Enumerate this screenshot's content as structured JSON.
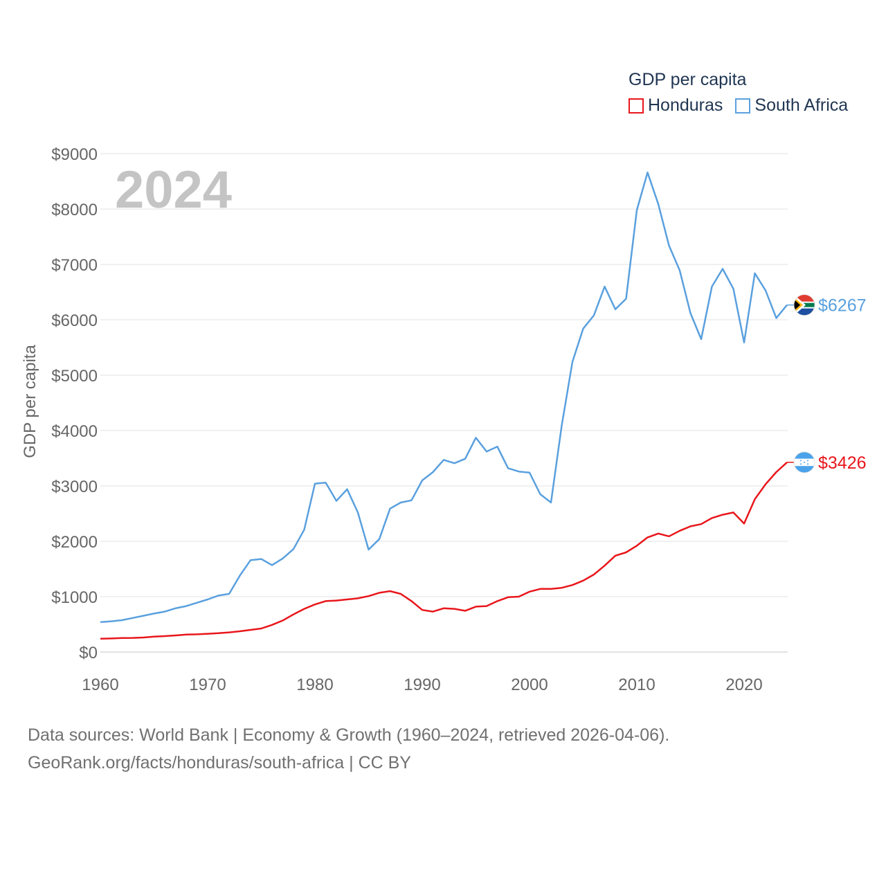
{
  "legend": {
    "title": "GDP per capita",
    "items": [
      {
        "label": "Honduras",
        "color": "#e8161b"
      },
      {
        "label": "South Africa",
        "color": "#5aa0de"
      }
    ]
  },
  "footer": {
    "line1": "Data sources: World Bank | Economy & Growth (1960–2024, retrieved 2026-04-06).",
    "line2": "GeoRank.org/facts/honduras/south-africa | CC BY"
  },
  "chart_data": {
    "type": "line",
    "title": "GDP per capita",
    "year_label": "2024",
    "ylabel": "GDP per capita",
    "xlabel": "",
    "xlim": [
      1960,
      2024
    ],
    "ylim": [
      0,
      9000
    ],
    "x_ticks": [
      1960,
      1970,
      1980,
      1990,
      2000,
      2010,
      2020
    ],
    "y_ticks": [
      0,
      1000,
      2000,
      3000,
      4000,
      5000,
      6000,
      7000,
      8000,
      9000
    ],
    "y_tick_labels": [
      "$0",
      "$1000",
      "$2000",
      "$3000",
      "$4000",
      "$5000",
      "$6000",
      "$7000",
      "$8000",
      "$9000"
    ],
    "grid": true,
    "legend_position": "top-right",
    "x": [
      1960,
      1961,
      1962,
      1963,
      1964,
      1965,
      1966,
      1967,
      1968,
      1969,
      1970,
      1971,
      1972,
      1973,
      1974,
      1975,
      1976,
      1977,
      1978,
      1979,
      1980,
      1981,
      1982,
      1983,
      1984,
      1985,
      1986,
      1987,
      1988,
      1989,
      1990,
      1991,
      1992,
      1993,
      1994,
      1995,
      1996,
      1997,
      1998,
      1999,
      2000,
      2001,
      2002,
      2003,
      2004,
      2005,
      2006,
      2007,
      2008,
      2009,
      2010,
      2011,
      2012,
      2013,
      2014,
      2015,
      2016,
      2017,
      2018,
      2019,
      2020,
      2021,
      2022,
      2023,
      2024
    ],
    "series": [
      {
        "name": "Honduras",
        "color": "#e8161b",
        "end_label": "$3426",
        "values": [
          240,
          245,
          252,
          255,
          262,
          278,
          288,
          300,
          315,
          320,
          330,
          340,
          355,
          375,
          400,
          425,
          490,
          570,
          680,
          780,
          860,
          920,
          930,
          950,
          970,
          1010,
          1070,
          1100,
          1050,
          920,
          760,
          730,
          790,
          780,
          745,
          820,
          830,
          920,
          990,
          1000,
          1090,
          1140,
          1140,
          1160,
          1210,
          1290,
          1400,
          1560,
          1740,
          1800,
          1920,
          2070,
          2140,
          2090,
          2190,
          2270,
          2310,
          2420,
          2480,
          2520,
          2320,
          2760,
          3030,
          3250,
          3426
        ]
      },
      {
        "name": "South Africa",
        "color": "#5aa0de",
        "end_label": "$6267",
        "values": [
          540,
          555,
          575,
          615,
          655,
          695,
          730,
          790,
          830,
          890,
          950,
          1020,
          1050,
          1380,
          1660,
          1680,
          1570,
          1690,
          1860,
          2210,
          3040,
          3060,
          2730,
          2940,
          2520,
          1850,
          2040,
          2590,
          2700,
          2740,
          3100,
          3250,
          3470,
          3410,
          3490,
          3870,
          3620,
          3710,
          3320,
          3260,
          3240,
          2850,
          2700,
          4090,
          5240,
          5840,
          6080,
          6600,
          6190,
          6380,
          7980,
          8660,
          8090,
          7340,
          6890,
          6120,
          5650,
          6600,
          6920,
          6560,
          5590,
          6840,
          6530,
          6030,
          6267
        ]
      }
    ]
  }
}
